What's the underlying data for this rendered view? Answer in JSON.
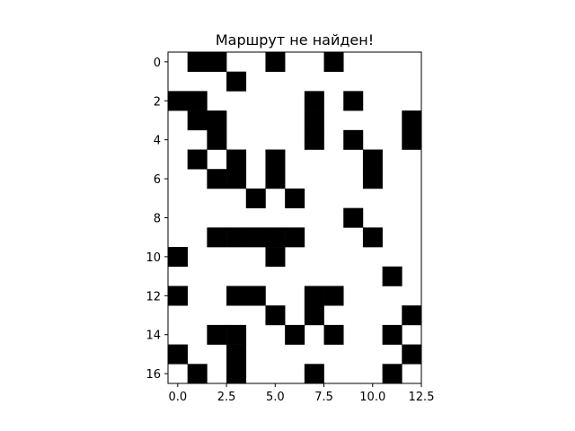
{
  "chart_data": {
    "type": "heatmap",
    "title": "Маршрут не найден!",
    "xlabel": "",
    "ylabel": "",
    "colormap": {
      "0": "#ffffff",
      "1": "#000000"
    },
    "xlim": [
      -0.5,
      12.5
    ],
    "ylim": [
      16.5,
      -0.5
    ],
    "x_ticks": [
      0.0,
      2.5,
      5.0,
      7.5,
      10.0,
      12.5
    ],
    "x_tick_labels": [
      "0.0",
      "2.5",
      "5.0",
      "7.5",
      "10.0",
      "12.5"
    ],
    "y_ticks": [
      0,
      2,
      4,
      6,
      8,
      10,
      12,
      14,
      16
    ],
    "y_tick_labels": [
      "0",
      "2",
      "4",
      "6",
      "8",
      "10",
      "12",
      "14",
      "16"
    ],
    "grid": false,
    "rows": 17,
    "cols": 13,
    "cells": [
      [
        0,
        1,
        1,
        0,
        0,
        1,
        0,
        0,
        1,
        0,
        0,
        0,
        0
      ],
      [
        0,
        0,
        0,
        1,
        0,
        0,
        0,
        0,
        0,
        0,
        0,
        0,
        0
      ],
      [
        1,
        1,
        0,
        0,
        0,
        0,
        0,
        1,
        0,
        1,
        0,
        0,
        0
      ],
      [
        0,
        1,
        1,
        0,
        0,
        0,
        0,
        1,
        0,
        0,
        0,
        0,
        1
      ],
      [
        0,
        0,
        1,
        0,
        0,
        0,
        0,
        1,
        0,
        1,
        0,
        0,
        1
      ],
      [
        0,
        1,
        0,
        1,
        0,
        1,
        0,
        0,
        0,
        0,
        1,
        0,
        0
      ],
      [
        0,
        0,
        1,
        1,
        0,
        1,
        0,
        0,
        0,
        0,
        1,
        0,
        0
      ],
      [
        0,
        0,
        0,
        0,
        1,
        0,
        1,
        0,
        0,
        0,
        0,
        0,
        0
      ],
      [
        0,
        0,
        0,
        0,
        0,
        0,
        0,
        0,
        0,
        1,
        0,
        0,
        0
      ],
      [
        0,
        0,
        1,
        1,
        1,
        1,
        1,
        0,
        0,
        0,
        1,
        0,
        0
      ],
      [
        1,
        0,
        0,
        0,
        0,
        1,
        0,
        0,
        0,
        0,
        0,
        0,
        0
      ],
      [
        0,
        0,
        0,
        0,
        0,
        0,
        0,
        0,
        0,
        0,
        0,
        1,
        0
      ],
      [
        1,
        0,
        0,
        1,
        1,
        0,
        0,
        1,
        1,
        0,
        0,
        0,
        0
      ],
      [
        0,
        0,
        0,
        0,
        0,
        1,
        0,
        1,
        0,
        0,
        0,
        0,
        1
      ],
      [
        0,
        0,
        1,
        1,
        0,
        0,
        1,
        0,
        1,
        0,
        0,
        1,
        0
      ],
      [
        1,
        0,
        0,
        1,
        0,
        0,
        0,
        0,
        0,
        0,
        0,
        0,
        1
      ],
      [
        0,
        1,
        0,
        1,
        0,
        0,
        0,
        1,
        0,
        0,
        0,
        1,
        0
      ]
    ]
  }
}
